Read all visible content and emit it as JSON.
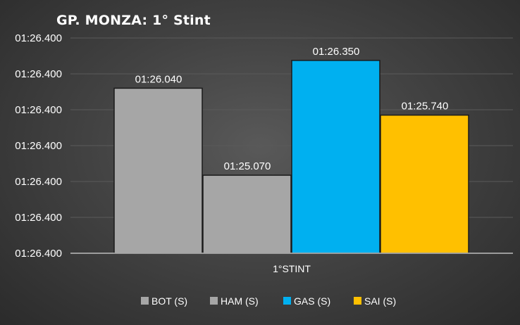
{
  "chart_data": {
    "type": "bar",
    "title": "GP. MONZA: 1° Stint",
    "categories": [
      "1°STINT"
    ],
    "series": [
      {
        "name": "BOT (S)",
        "values": [
          86.04
        ],
        "label": "01:26.040",
        "color": "#a6a6a6"
      },
      {
        "name": "HAM (S)",
        "values": [
          85.07
        ],
        "label": "01:25.070",
        "color": "#a6a6a6"
      },
      {
        "name": "GAS (S)",
        "values": [
          86.35
        ],
        "label": "01:26.350",
        "color": "#00b0f0"
      },
      {
        "name": "SAI (S)",
        "values": [
          85.74
        ],
        "label": "01:25.740",
        "color": "#ffc000"
      }
    ],
    "y_tick_labels": [
      "01:26.400",
      "01:26.400",
      "01:26.400",
      "01:26.400",
      "01:26.400",
      "01:26.400",
      "01:26.400"
    ],
    "ylim": [
      84.2,
      86.6
    ],
    "grid": true,
    "legend_position": "bottom"
  }
}
